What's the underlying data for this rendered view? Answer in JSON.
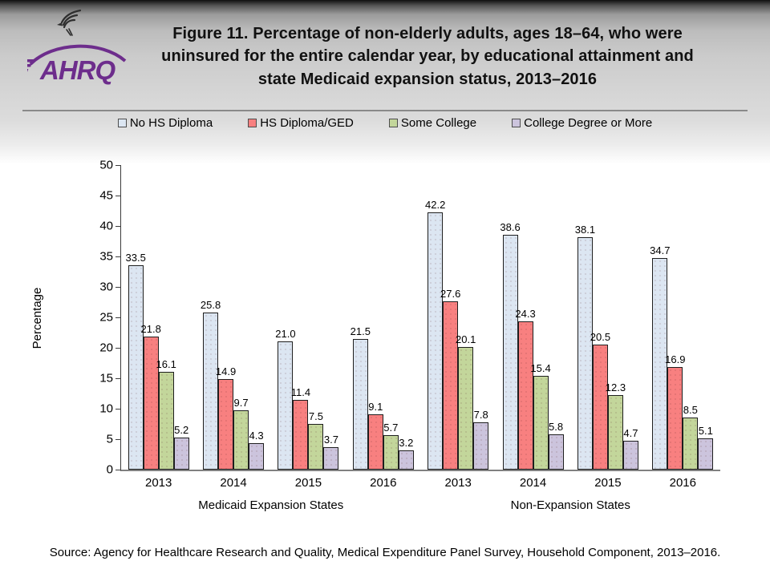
{
  "header": {
    "title": "Figure 11. Percentage of non-elderly adults, ages 18–64, who were uninsured for the entire calendar year, by educational attainment and state Medicaid expansion status, 2013–2016",
    "logo_text": "AHRQ"
  },
  "chart_data": {
    "type": "bar",
    "title": "Figure 11. Percentage of non-elderly adults, ages 18–64, who were uninsured for the entire calendar year, by educational attainment and state Medicaid expansion status, 2013–2016",
    "xlabel": "",
    "ylabel": "Percentage",
    "ylim": [
      0,
      50
    ],
    "ytick_step": 5,
    "grid": false,
    "legend_position": "top",
    "group_labels": [
      "Medicaid Expansion States",
      "Non-Expansion States"
    ],
    "categories": [
      "2013",
      "2014",
      "2015",
      "2016",
      "2013",
      "2014",
      "2015",
      "2016"
    ],
    "series": [
      {
        "name": "No HS Diploma",
        "color": "#dce6f2",
        "values": [
          "33.5",
          "25.8",
          "21.0",
          "21.5",
          "42.2",
          "38.6",
          "38.1",
          "34.7"
        ]
      },
      {
        "name": "HS Diploma/GED",
        "color": "#f88080",
        "values": [
          "21.8",
          "14.9",
          "11.4",
          "9.1",
          "27.6",
          "24.3",
          "20.5",
          "16.9"
        ]
      },
      {
        "name": "Some College",
        "color": "#c3d69b",
        "values": [
          "16.1",
          "9.7",
          "7.5",
          "5.7",
          "20.1",
          "15.4",
          "12.3",
          "8.5"
        ]
      },
      {
        "name": "College Degree or More",
        "color": "#ccc4dd",
        "values": [
          "5.2",
          "4.3",
          "3.7",
          "3.2",
          "7.8",
          "5.8",
          "4.7",
          "5.1"
        ]
      }
    ]
  },
  "footer": {
    "source": "Source: Agency for Healthcare Research and Quality, Medical Expenditure Panel Survey, Household Component, 2013–2016."
  }
}
